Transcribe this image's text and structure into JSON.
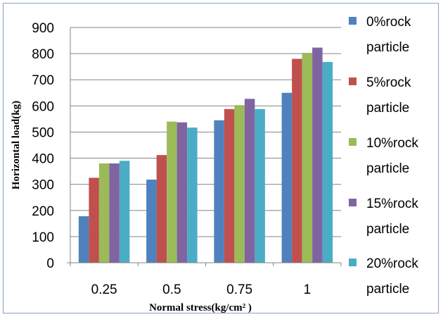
{
  "chart_data": {
    "type": "bar",
    "title": "",
    "xlabel": "Normal stress(kg/cm² )",
    "ylabel": "Horizontal load(kg)",
    "categories": [
      "0.25",
      "0.5",
      "0.75",
      "1"
    ],
    "ylim": [
      0,
      900
    ],
    "yticks": [
      0,
      100,
      200,
      300,
      400,
      500,
      600,
      700,
      800,
      900
    ],
    "grid": true,
    "legend_position": "right",
    "series": [
      {
        "name": "0%rock particle",
        "name_lines": [
          "0%rock",
          "particle"
        ],
        "color": "#4f81bd",
        "values": [
          178,
          318,
          545,
          650
        ]
      },
      {
        "name": "5%rock particle",
        "name_lines": [
          "5%rock",
          "particle"
        ],
        "color": "#c0504d",
        "values": [
          325,
          412,
          588,
          780
        ]
      },
      {
        "name": "10%rock particle",
        "name_lines": [
          "10%rock",
          "particle"
        ],
        "color": "#9bbb59",
        "values": [
          380,
          540,
          603,
          803
        ]
      },
      {
        "name": "15%rock particle",
        "name_lines": [
          "15%rock",
          "particle"
        ],
        "color": "#8064a2",
        "values": [
          380,
          537,
          627,
          823
        ]
      },
      {
        "name": "20%rock particle",
        "name_lines": [
          "20%rock",
          "particle"
        ],
        "color": "#4bacc6",
        "values": [
          390,
          517,
          588,
          768
        ]
      }
    ]
  }
}
